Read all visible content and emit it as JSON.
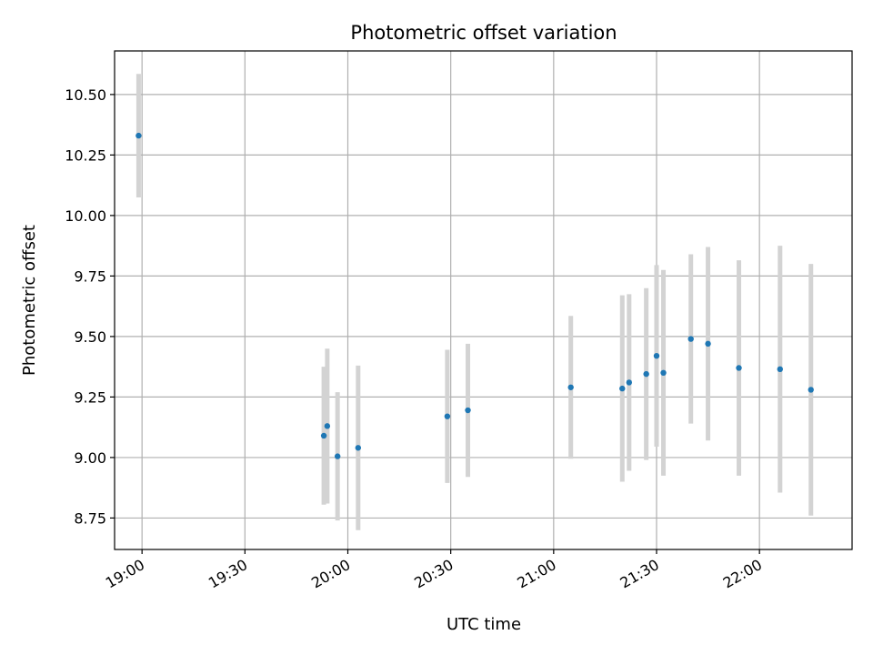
{
  "chart_data": {
    "type": "scatter",
    "title": "Photometric offset variation",
    "xlabel": "UTC time",
    "ylabel": "Photometric offset",
    "x_tick_labels": [
      "19:00",
      "19:30",
      "20:00",
      "20:30",
      "21:00",
      "21:30",
      "22:00"
    ],
    "y_ticks": [
      8.75,
      9.0,
      9.25,
      9.5,
      9.75,
      10.0,
      10.25,
      10.5
    ],
    "y_tick_labels": [
      "8.75",
      "9.00",
      "9.25",
      "9.50",
      "9.75",
      "10.00",
      "10.25",
      "10.50"
    ],
    "xlim": [
      "18:52",
      "22:27"
    ],
    "ylim": [
      8.62,
      10.68
    ],
    "grid": true,
    "colors": {
      "point": "#1f77b4",
      "errorbar": "#d3d3d3",
      "grid": "#b0b0b0"
    },
    "series": [
      {
        "points": [
          {
            "x": "18:59",
            "y": 10.33,
            "err": 0.255
          },
          {
            "x": "19:53",
            "y": 9.09,
            "err": 0.285
          },
          {
            "x": "19:54",
            "y": 9.13,
            "err": 0.32
          },
          {
            "x": "19:57",
            "y": 9.005,
            "err": 0.265
          },
          {
            "x": "20:03",
            "y": 9.04,
            "err": 0.34
          },
          {
            "x": "20:29",
            "y": 9.17,
            "err": 0.275
          },
          {
            "x": "20:35",
            "y": 9.195,
            "err": 0.275
          },
          {
            "x": "21:05",
            "y": 9.29,
            "err": 0.295
          },
          {
            "x": "21:20",
            "y": 9.285,
            "err": 0.385
          },
          {
            "x": "21:22",
            "y": 9.31,
            "err": 0.365
          },
          {
            "x": "21:27",
            "y": 9.345,
            "err": 0.355
          },
          {
            "x": "21:30",
            "y": 9.42,
            "err": 0.375
          },
          {
            "x": "21:32",
            "y": 9.35,
            "err": 0.425
          },
          {
            "x": "21:40",
            "y": 9.49,
            "err": 0.35
          },
          {
            "x": "21:45",
            "y": 9.47,
            "err": 0.4
          },
          {
            "x": "21:54",
            "y": 9.37,
            "err": 0.445
          },
          {
            "x": "22:06",
            "y": 9.365,
            "err": 0.51
          },
          {
            "x": "22:15",
            "y": 9.28,
            "err": 0.52
          }
        ]
      }
    ]
  }
}
